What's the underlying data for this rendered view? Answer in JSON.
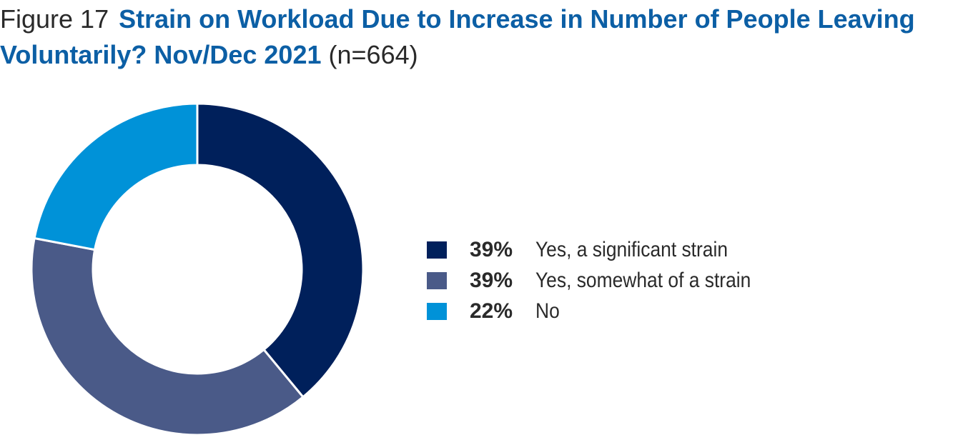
{
  "title": {
    "figure": "Figure 17",
    "main": "Strain on Workload Due to Increase in Number of People Leaving Voluntarily? Nov/Dec 2021",
    "n": "(n=664)"
  },
  "chart_data": {
    "type": "pie",
    "donut": true,
    "legend_position": "right",
    "series": [
      {
        "name": "Yes, a significant strain",
        "value": 39,
        "label": "39%",
        "color": "#00205b"
      },
      {
        "name": "Yes, somewhat of a strain",
        "value": 39,
        "label": "39%",
        "color": "#4a5a88"
      },
      {
        "name": "No",
        "value": 22,
        "label": "22%",
        "color": "#0092d8"
      }
    ]
  }
}
